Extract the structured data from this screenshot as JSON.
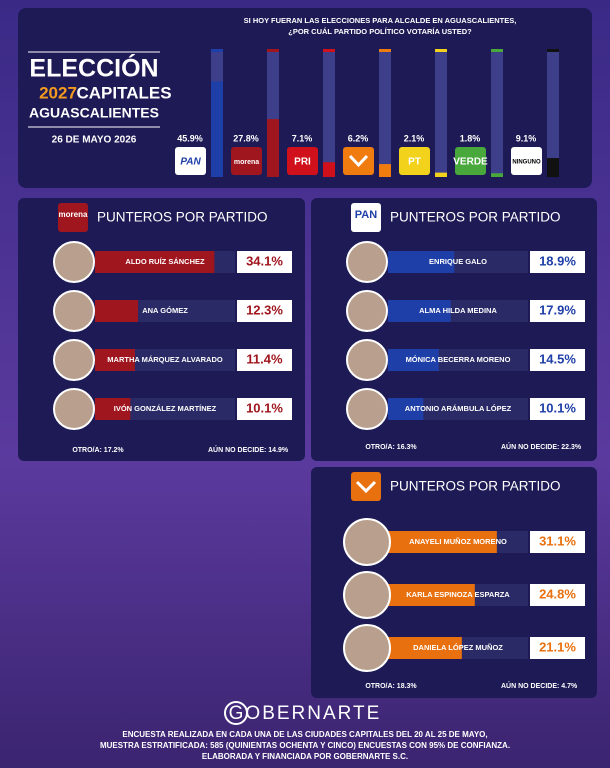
{
  "header": {
    "title": "ELECCIÓN",
    "year": "2027",
    "subtitle": "CAPITALES",
    "place": "AGUASCALIENTES",
    "date": "26 DE MAYO 2026"
  },
  "chart_data": [
    {
      "type": "column",
      "title": [
        "SI HOY FUERAN LAS ELECCIONES PARA ALCALDE EN AGUASCALIENTES,",
        "¿POR CUÁL PARTIDO POLÍTICO VOTARÍA USTED?"
      ],
      "categories": [
        "PAN",
        "morena",
        "PRI",
        null,
        "PT",
        "VERDE",
        "NINGUNO"
      ],
      "values": [
        45.9,
        27.8,
        7.1,
        6.2,
        2.1,
        1.8,
        9.1
      ],
      "value_labels": [
        "45.9%",
        "27.8%",
        "7.1%",
        "6.2%",
        "2.1%",
        "1.8%",
        "9.1%"
      ],
      "colors": [
        "#1f3fa8",
        "#a0161e",
        "#d0101a",
        "#f07c10",
        "#f2d21a",
        "#48a83c",
        "#111111"
      ],
      "ylim": [
        0,
        60
      ]
    },
    {
      "type": "hbar",
      "title": "PUNTEROS POR PARTIDO",
      "logo": "morena",
      "color": "#a0161e",
      "categories": [
        "ALDO RUÍZ SÁNCHEZ",
        "ANA GÓMEZ",
        "MARTHA MÁRQUEZ ALVARADO",
        "IVÓN GONZÁLEZ MARTÍNEZ"
      ],
      "values": [
        34.1,
        12.3,
        11.4,
        10.1
      ],
      "value_labels": [
        "34.1%",
        "12.3%",
        "11.4%",
        "10.1%"
      ],
      "notes": [
        "OTRO/A: 17.2%",
        "AÚN NO DECIDE: 14.9%"
      ],
      "xlim": [
        0,
        40
      ]
    },
    {
      "type": "hbar",
      "title": "PUNTEROS POR PARTIDO",
      "logo": "PAN",
      "color": "#1f3fa8",
      "categories": [
        "ENRIQUE GALO",
        "ALMA HILDA MEDINA",
        "MÓNICA BECERRA MORENO",
        "ANTONIO ARÁMBULA LÓPEZ"
      ],
      "values": [
        18.9,
        17.9,
        14.5,
        10.1
      ],
      "value_labels": [
        "18.9%",
        "17.9%",
        "14.5%",
        "10.1%"
      ],
      "notes": [
        "OTRO/A: 16.3%",
        "AÚN NO DECIDE: 22.3%"
      ],
      "xlim": [
        0,
        40
      ]
    },
    {
      "type": "hbar",
      "title": "PUNTEROS POR PARTIDO",
      "color": "#e8700e",
      "categories": [
        "ANAYELI MUÑOZ MORENO",
        "KARLA ESPINOZA ESPARZA",
        "DANIELA LÓPEZ MUÑOZ"
      ],
      "values": [
        31.1,
        24.8,
        21.1
      ],
      "value_labels": [
        "31.1%",
        "24.8%",
        "21.1%"
      ],
      "notes": [
        "OTRO/A: 18.3%",
        "AÚN NO DECIDE: 4.7%"
      ],
      "xlim": [
        0,
        40
      ]
    }
  ],
  "footer": {
    "brand": "GOBERNARTE",
    "lines": [
      "ENCUESTA REALIZADA EN CADA UNA DE LAS CIUDADES CAPITALES DEL 20 AL 25 DE MAYO,",
      "MUESTRA ESTRATIFICADA: 585 (QUINIENTAS OCHENTA Y CINCO) ENCUESTAS CON 95% DE CONFIANZA.",
      "ELABORADA Y FINANCIADA POR GOBERNARTE S.C."
    ]
  }
}
